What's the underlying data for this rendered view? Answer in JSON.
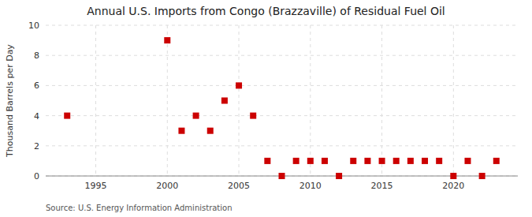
{
  "chart_data": {
    "type": "scatter",
    "title": "Annual U.S. Imports from Congo (Brazzaville) of Residual Fuel Oil",
    "ylabel": "Thousand Barrels per Day",
    "annotation": "Source: U.S. Energy Information Administration",
    "x": [
      1993,
      2000,
      2001,
      2002,
      2003,
      2004,
      2005,
      2006,
      2007,
      2008,
      2009,
      2010,
      2011,
      2012,
      2013,
      2014,
      2015,
      2016,
      2017,
      2018,
      2019,
      2020,
      2021,
      2022,
      2023
    ],
    "values": [
      4,
      9,
      3,
      4,
      3,
      5,
      6,
      4,
      1,
      0,
      1,
      1,
      1,
      0,
      1,
      1,
      1,
      1,
      1,
      1,
      1,
      0,
      1,
      0,
      1
    ],
    "color": "#cc0000",
    "marker": "square",
    "xlim": [
      1991.5,
      2024.5
    ],
    "ylim": [
      0,
      10
    ],
    "xticks": [
      1995,
      2000,
      2005,
      2010,
      2015,
      2020
    ],
    "yticks": [
      0,
      2,
      4,
      6,
      8,
      10
    ],
    "grid": true
  }
}
